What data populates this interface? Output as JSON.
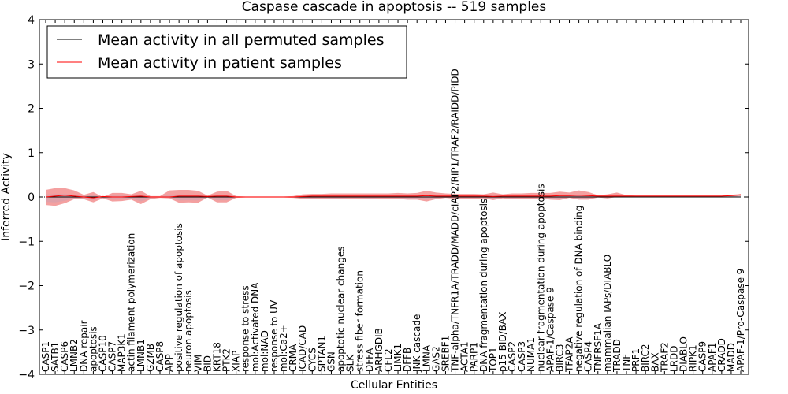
{
  "chart_data": {
    "type": "line",
    "title": "Caspase cascade in apoptosis -- 519 samples",
    "xlabel": "Cellular Entities",
    "ylabel": "Inferred Activity",
    "ylim": [
      -4,
      4
    ],
    "yticks": [
      "4",
      "3",
      "2",
      "1",
      "0",
      "−1",
      "−2",
      "−3",
      "−4"
    ],
    "grid": false,
    "legend_position": "top-left",
    "colors": {
      "permuted": "#000000",
      "patient": "#ff0000",
      "patient_band": "#f08080",
      "permuted_band": "#c8a0b4",
      "zero_line": "#000000"
    },
    "series": [
      {
        "name": "Mean activity in all permuted samples",
        "key": "permuted"
      },
      {
        "name": "Mean activity in patient samples",
        "key": "patient"
      }
    ],
    "categories": [
      "CASP1",
      "SATB1",
      "CASP6",
      "LMNB2",
      "DNA repair",
      "apoptosis",
      "CASP10",
      "CASP7",
      "MAP3K1",
      "actin filament polymerization",
      "LMNB1",
      "GZMB",
      "CASP8",
      "APP",
      "positive regulation of apoptosis",
      "neuron apoptosis",
      "VIM",
      "BID",
      "KRT18",
      "PTK2",
      "XIAP",
      "response to stress",
      "mol:Activated DNA",
      "mol:NAD",
      "response to UV",
      "mol:Ca2+",
      "CRMA",
      "ICAD/CAD",
      "CYCS",
      "SPTAN1",
      "GSN",
      "apoptotic nuclear changes",
      "SLK",
      "stress fiber formation",
      "DFFA",
      "ARHGDIB",
      "CFL2",
      "LIMK1",
      "DFFB",
      "JNK cascade",
      "LMNA",
      "GAS2",
      "SREBF1",
      "TNF-alpha/TNFR1A/TRADD/MADD/cIAP2/RIP1/TRAF2/RAIDD/PIDD",
      "ACTA1",
      "PARP1",
      "DNA fragmentation during apoptosis",
      "TOP1",
      "p15 BID/BAX",
      "CASP2",
      "CASP3",
      "NUMA1",
      "nuclear fragmentation during apoptosis",
      "APAF-1/Caspase 9",
      "BIRC3",
      "TFAP2A",
      "negative regulation of DNA binding",
      "CASP4",
      "TNFRSF1A",
      "mammalian IAPs/DIABLO",
      "TRADD",
      "TNF",
      "PRF1",
      "BIRC2",
      "BAX",
      "TRAF2",
      "LRDD",
      "DIABLO",
      "RIPK1",
      "CASP9",
      "APAF1",
      "CRADD",
      "MADD",
      "APAF-1/Pro-Caspase 9"
    ],
    "patient_mean": [
      0.0,
      0.02,
      0.04,
      0.02,
      0.0,
      -0.02,
      0.01,
      0.0,
      0.0,
      0.01,
      0.02,
      0.0,
      0.0,
      0.0,
      0.02,
      0.02,
      0.02,
      0.01,
      0.02,
      0.02,
      0.0,
      0.0,
      0.0,
      0.0,
      0.0,
      0.0,
      0.0,
      0.01,
      0.02,
      0.02,
      0.02,
      0.02,
      0.02,
      0.02,
      0.02,
      0.02,
      0.02,
      0.02,
      0.02,
      0.02,
      0.03,
      0.02,
      0.02,
      0.02,
      0.02,
      0.02,
      0.02,
      0.01,
      0.02,
      0.02,
      0.02,
      0.02,
      0.02,
      0.02,
      0.03,
      0.03,
      0.04,
      0.03,
      0.02,
      0.02,
      0.02,
      0.02,
      0.02,
      0.02,
      0.02,
      0.02,
      0.02,
      0.02,
      0.02,
      0.02,
      0.02,
      0.02,
      0.03,
      0.05
    ],
    "patient_band_lower": [
      -0.18,
      -0.2,
      -0.14,
      -0.05,
      -0.05,
      -0.12,
      -0.03,
      -0.1,
      -0.09,
      -0.06,
      -0.16,
      -0.05,
      -0.02,
      -0.03,
      -0.13,
      -0.12,
      -0.13,
      -0.01,
      -0.12,
      -0.12,
      -0.02,
      -0.01,
      -0.01,
      -0.01,
      -0.01,
      -0.01,
      -0.02,
      -0.04,
      -0.05,
      -0.04,
      -0.05,
      -0.05,
      -0.04,
      -0.04,
      -0.05,
      -0.04,
      -0.04,
      -0.04,
      -0.06,
      -0.06,
      -0.1,
      -0.05,
      -0.02,
      -0.04,
      -0.04,
      -0.04,
      -0.03,
      -0.07,
      -0.03,
      -0.05,
      -0.04,
      -0.04,
      -0.03,
      -0.06,
      -0.07,
      -0.02,
      -0.06,
      -0.06,
      -0.01,
      -0.03,
      0.0,
      0.01,
      0.01,
      0.01,
      0.01,
      0.01,
      0.01,
      0.01,
      0.01,
      0.01,
      0.01,
      0.01,
      0.01,
      0.02
    ],
    "patient_band_upper": [
      0.16,
      0.2,
      0.2,
      0.15,
      0.05,
      0.11,
      0.0,
      0.09,
      0.09,
      0.06,
      0.14,
      0.02,
      0.02,
      0.15,
      0.16,
      0.16,
      0.14,
      0.03,
      0.12,
      0.14,
      0.02,
      0.01,
      0.01,
      0.01,
      0.01,
      0.01,
      0.02,
      0.06,
      0.07,
      0.07,
      0.08,
      0.08,
      0.08,
      0.08,
      0.08,
      0.08,
      0.08,
      0.09,
      0.08,
      0.09,
      0.14,
      0.1,
      0.08,
      0.07,
      0.07,
      0.07,
      0.06,
      0.1,
      0.06,
      0.08,
      0.08,
      0.09,
      0.09,
      0.09,
      0.12,
      0.1,
      0.15,
      0.11,
      0.04,
      0.06,
      0.1,
      0.04,
      0.03,
      0.03,
      0.03,
      0.03,
      0.03,
      0.03,
      0.03,
      0.03,
      0.03,
      0.03,
      0.05,
      0.07
    ]
  }
}
